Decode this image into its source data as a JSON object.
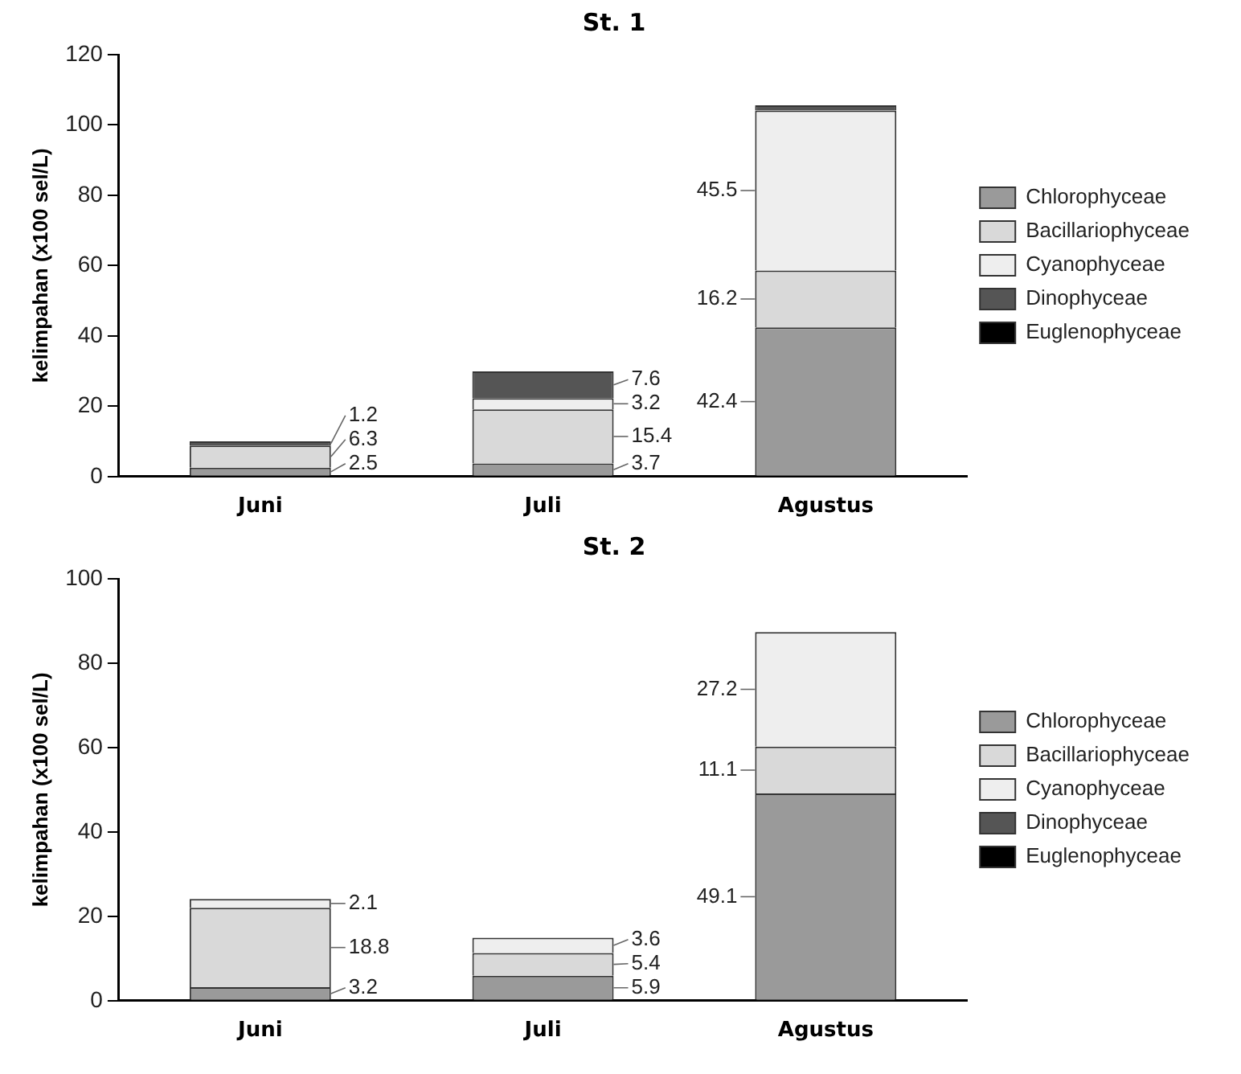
{
  "chart_data": [
    {
      "type": "bar",
      "title": "St. 1",
      "ylabel": "kelimpahan (x100 sel/L)",
      "categories": [
        "Juni",
        "Juli",
        "Agustus"
      ],
      "stacked": true,
      "ylim": [
        0,
        120
      ],
      "yticks": [
        0,
        20,
        40,
        60,
        80,
        100,
        120
      ],
      "grid": false,
      "legend": "right",
      "series": [
        {
          "name": "Chlorophyceae",
          "color": "#9a9a9a",
          "values": [
            2.5,
            3.7,
            42.4
          ],
          "value_labels": [
            "2.5",
            "3.7",
            "42.4"
          ]
        },
        {
          "name": "Bacillariophyceae",
          "color": "#d9d9d9",
          "values": [
            6.3,
            15.4,
            16.2
          ],
          "value_labels": [
            "6.3",
            "15.4",
            "16.2"
          ]
        },
        {
          "name": "Cyanophyceae",
          "color": "#eeeeee",
          "values": [
            null,
            3.2,
            45.5
          ],
          "value_labels": [
            null,
            "3.2",
            "45.5"
          ]
        },
        {
          "name": "Dinophyceae",
          "color": "#555555",
          "values": [
            1.2,
            7.6,
            1.5
          ],
          "value_labels": [
            "1.2",
            "7.6",
            null
          ]
        },
        {
          "name": "Euglenophyceae",
          "color": "#000000",
          "values": [
            null,
            null,
            null
          ]
        }
      ]
    },
    {
      "type": "bar",
      "title": "St. 2",
      "ylabel": "kelimpahan (x100 sel/L)",
      "categories": [
        "Juni",
        "Juli",
        "Agustus"
      ],
      "stacked": true,
      "ylim": [
        0,
        100
      ],
      "yticks": [
        0,
        20,
        40,
        60,
        80,
        100
      ],
      "grid": false,
      "legend": "right",
      "series": [
        {
          "name": "Chlorophyceae",
          "color": "#9a9a9a",
          "values": [
            3.2,
            5.9,
            49.1
          ],
          "value_labels": [
            "3.2",
            "5.9",
            "49.1"
          ]
        },
        {
          "name": "Bacillariophyceae",
          "color": "#d9d9d9",
          "values": [
            18.8,
            5.4,
            11.1
          ],
          "value_labels": [
            "18.8",
            "5.4",
            "11.1"
          ]
        },
        {
          "name": "Cyanophyceae",
          "color": "#eeeeee",
          "values": [
            2.1,
            3.6,
            27.2
          ],
          "value_labels": [
            "2.1",
            "3.6",
            "27.2"
          ]
        },
        {
          "name": "Dinophyceae",
          "color": "#555555",
          "values": [
            null,
            null,
            null
          ]
        },
        {
          "name": "Euglenophyceae",
          "color": "#000000",
          "values": [
            null,
            null,
            null
          ]
        }
      ]
    }
  ]
}
